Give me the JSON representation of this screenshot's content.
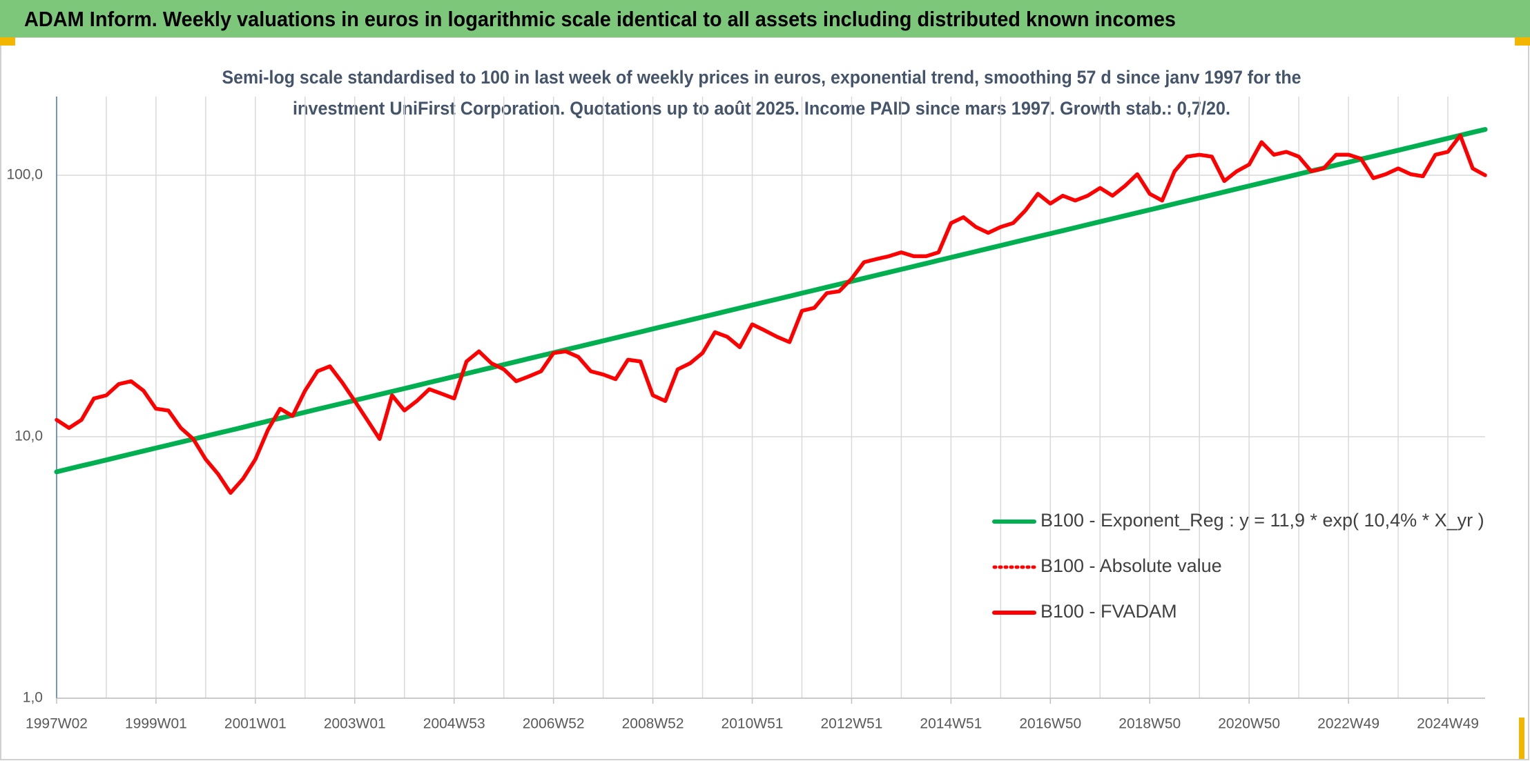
{
  "chart_data": {
    "type": "line",
    "title": "ADAM Inform. Weekly valuations in euros in logarithmic scale identical to all assets including distributed known incomes",
    "subtitle": [
      "Semi-log scale standardised to 100 in last week of weekly prices in euros, exponential trend, smoothing 57 d since janv 1997 for the",
      "investment UniFirst Corporation. Quotations up to août 2025. Income PAID since mars 1997. Growth stab.: 0,7/20."
    ],
    "yscale": "log",
    "grid": true,
    "ylim": [
      1,
      200
    ],
    "yticks": [
      {
        "value": 1,
        "label": "1,0"
      },
      {
        "value": 10,
        "label": "10,0"
      },
      {
        "value": 100,
        "label": "100,0"
      }
    ],
    "categories": [
      "1997W02",
      null,
      null,
      null,
      null,
      null,
      null,
      null,
      "1999W01",
      null,
      null,
      null,
      null,
      null,
      null,
      null,
      "2001W01",
      null,
      null,
      null,
      null,
      null,
      null,
      null,
      "2003W01",
      null,
      null,
      null,
      null,
      null,
      null,
      null,
      "2004W53",
      null,
      null,
      null,
      null,
      null,
      null,
      null,
      "2006W52",
      null,
      null,
      null,
      null,
      null,
      null,
      null,
      "2008W52",
      null,
      null,
      null,
      null,
      null,
      null,
      null,
      "2010W51",
      null,
      null,
      null,
      null,
      null,
      null,
      null,
      "2012W51",
      null,
      null,
      null,
      null,
      null,
      null,
      null,
      "2014W51",
      null,
      null,
      null,
      null,
      null,
      null,
      null,
      "2016W50",
      null,
      null,
      null,
      null,
      null,
      null,
      null,
      "2018W50",
      null,
      null,
      null,
      null,
      null,
      null,
      null,
      "2020W50",
      null,
      null,
      null,
      null,
      null,
      null,
      null,
      "2022W49",
      null,
      null,
      null,
      null,
      null,
      null,
      null,
      "2024W49",
      null,
      null,
      null
    ],
    "series": [
      {
        "name": "B100 - Exponent_Reg : y = 11,9 * exp( 10,4% *  X_yr )",
        "color": "#00b050",
        "style": "solid",
        "values": [
          7.34,
          7.54,
          7.74,
          7.94,
          8.15,
          8.37,
          8.59,
          8.82,
          9.05,
          9.29,
          9.54,
          9.79,
          10.05,
          10.32,
          10.59,
          10.87,
          11.17,
          11.47,
          11.77,
          12.08,
          12.41,
          12.74,
          13.07,
          13.42,
          13.77,
          14.14,
          14.51,
          14.9,
          15.29,
          15.7,
          16.12,
          16.55,
          16.99,
          17.44,
          17.91,
          18.38,
          18.87,
          19.37,
          19.89,
          20.42,
          20.95,
          21.51,
          22.08,
          22.67,
          23.27,
          23.89,
          24.52,
          25.17,
          25.84,
          26.53,
          27.23,
          27.96,
          28.7,
          29.46,
          30.25,
          31.05,
          31.87,
          32.72,
          33.59,
          34.48,
          35.4,
          36.34,
          37.3,
          38.3,
          39.31,
          40.36,
          41.43,
          42.53,
          43.66,
          44.82,
          46.01,
          47.24,
          48.49,
          49.78,
          51.1,
          52.46,
          53.86,
          55.29,
          56.76,
          58.27,
          59.81,
          61.4,
          63.03,
          64.71,
          66.43,
          68.2,
          70.01,
          71.87,
          73.77,
          75.73,
          77.75,
          79.81,
          81.94,
          84.11,
          86.35,
          88.64,
          90.99,
          93.41,
          95.89,
          98.44,
          101.06,
          103.75,
          106.5,
          109.33,
          112.2,
          115.2,
          118.2,
          121.4,
          124.6,
          127.9,
          131.3,
          134.8,
          138.4,
          142.1,
          145.9,
          149.7
        ]
      },
      {
        "name": "B100 - Absolute value",
        "color": "#ff0000",
        "style": "dotted",
        "values": [
          11.6,
          10.8,
          11.6,
          14.0,
          14.4,
          15.9,
          16.3,
          15.0,
          12.8,
          12.6,
          10.8,
          9.8,
          8.2,
          7.2,
          6.1,
          6.9,
          8.2,
          10.6,
          12.8,
          12.0,
          15.0,
          17.8,
          18.6,
          16.1,
          13.7,
          11.6,
          9.8,
          14.4,
          12.6,
          13.7,
          15.2,
          14.6,
          14.0,
          19.4,
          21.2,
          19.1,
          18.1,
          16.3,
          17.0,
          17.8,
          20.9,
          21.2,
          20.2,
          17.8,
          17.3,
          16.6,
          19.7,
          19.4,
          14.4,
          13.7,
          18.1,
          19.1,
          20.9,
          25.1,
          24.1,
          22.0,
          26.9,
          25.5,
          24.1,
          23.0,
          30.3,
          31.1,
          35.4,
          36.0,
          40.2,
          46.5,
          47.8,
          49.0,
          50.7,
          49.0,
          49.0,
          50.7,
          65.6,
          69.1,
          63.4,
          60.2,
          63.4,
          65.6,
          73.4,
          84.9,
          77.9,
          83.5,
          80.0,
          83.5,
          89.4,
          83.5,
          91.0,
          100.9,
          84.9,
          80.0,
          103.5,
          117.8,
          119.8,
          117.8,
          95.0,
          103.5,
          109.9,
          133.9,
          119.8,
          122.9,
          117.8,
          103.5,
          106.2,
          119.8,
          119.8,
          115.7,
          97.5,
          100.9,
          106.2,
          100.9,
          99.1,
          119.8,
          122.9,
          142,
          106.2,
          100.0
        ]
      },
      {
        "name": "B100 - FVADAM",
        "color": "#ff0000",
        "style": "solid",
        "values": [
          11.6,
          10.8,
          11.6,
          14.0,
          14.4,
          15.9,
          16.3,
          15.0,
          12.8,
          12.6,
          10.8,
          9.8,
          8.2,
          7.2,
          6.1,
          6.9,
          8.2,
          10.6,
          12.8,
          12.0,
          15.0,
          17.8,
          18.6,
          16.1,
          13.7,
          11.6,
          9.8,
          14.4,
          12.6,
          13.7,
          15.2,
          14.6,
          14.0,
          19.4,
          21.2,
          19.1,
          18.1,
          16.3,
          17.0,
          17.8,
          20.9,
          21.2,
          20.2,
          17.8,
          17.3,
          16.6,
          19.7,
          19.4,
          14.4,
          13.7,
          18.1,
          19.1,
          20.9,
          25.1,
          24.1,
          22.0,
          26.9,
          25.5,
          24.1,
          23.0,
          30.3,
          31.1,
          35.4,
          36.0,
          40.2,
          46.5,
          47.8,
          49.0,
          50.7,
          49.0,
          49.0,
          50.7,
          65.6,
          69.1,
          63.4,
          60.2,
          63.4,
          65.6,
          73.4,
          84.9,
          77.9,
          83.5,
          80.0,
          83.5,
          89.4,
          83.5,
          91.0,
          100.9,
          84.9,
          80.0,
          103.5,
          117.8,
          119.8,
          117.8,
          95.0,
          103.5,
          109.9,
          133.9,
          119.8,
          122.9,
          117.8,
          103.5,
          106.2,
          119.8,
          119.8,
          115.7,
          97.5,
          100.9,
          106.2,
          100.9,
          99.1,
          119.8,
          122.9,
          142,
          106.2,
          100.0
        ]
      }
    ]
  }
}
